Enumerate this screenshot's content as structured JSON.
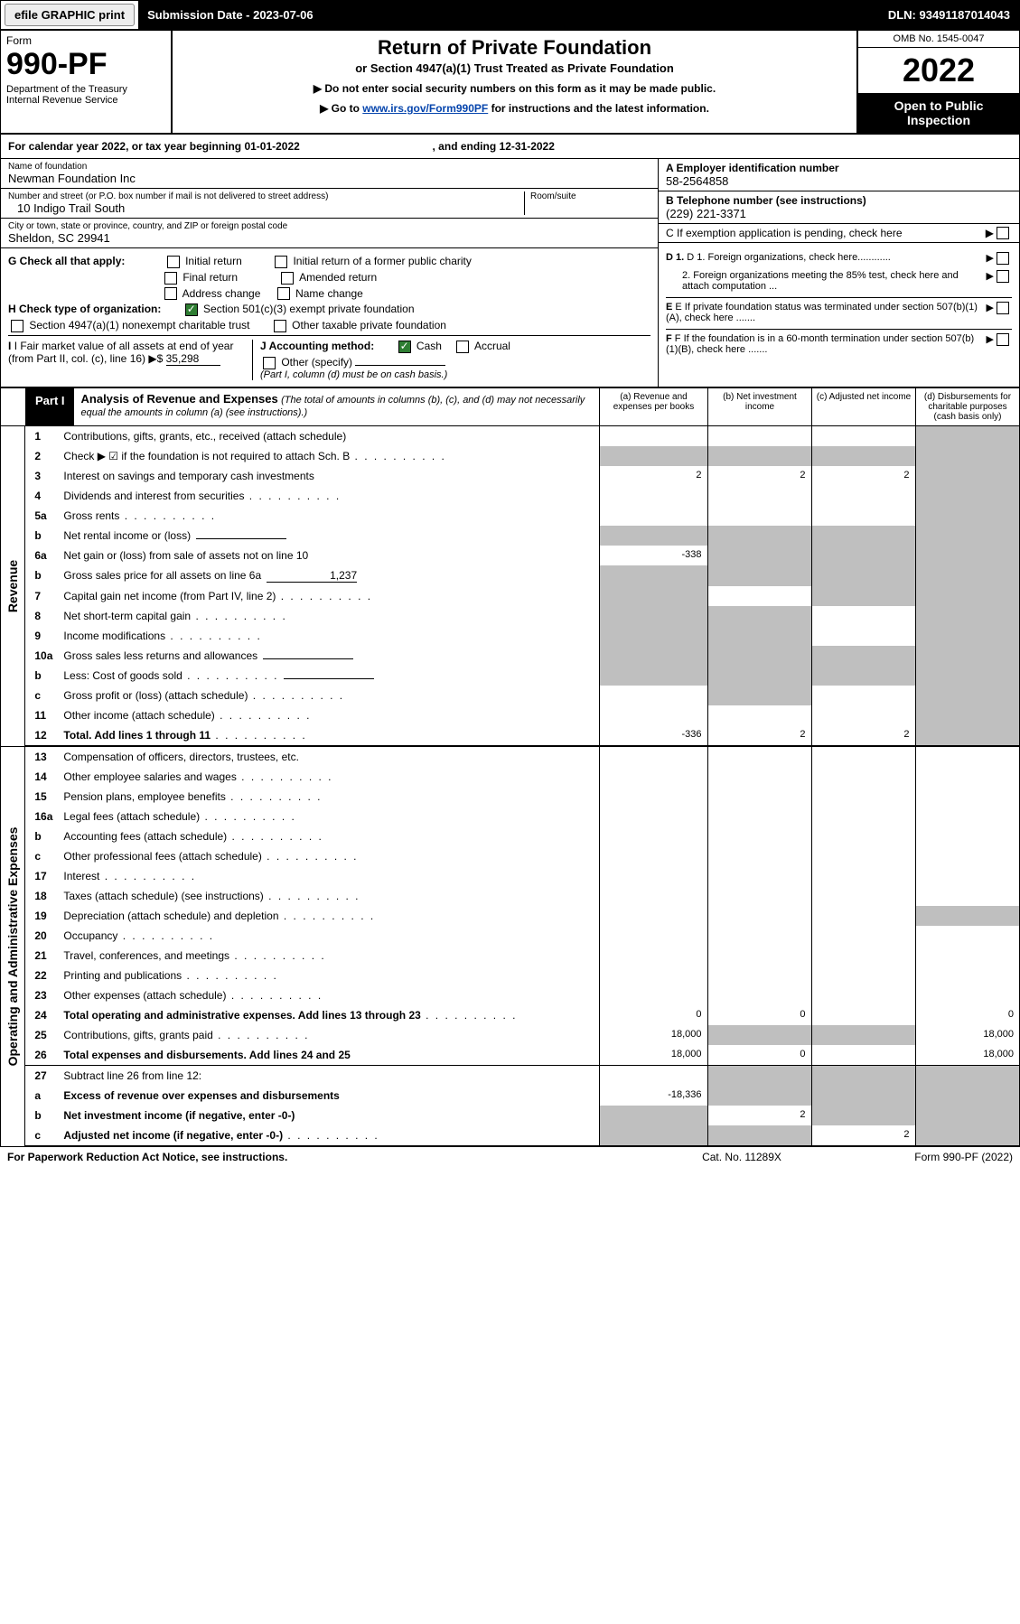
{
  "topbar": {
    "efile": "efile GRAPHIC print",
    "submission": "Submission Date - 2023-07-06",
    "dln": "DLN: 93491187014043"
  },
  "header": {
    "form_label": "Form",
    "form_no": "990-PF",
    "dept": "Department of the Treasury\nInternal Revenue Service",
    "title": "Return of Private Foundation",
    "subtitle": "or Section 4947(a)(1) Trust Treated as Private Foundation",
    "note1": "▶ Do not enter social security numbers on this form as it may be made public.",
    "note2_pre": "▶ Go to ",
    "note2_link": "www.irs.gov/Form990PF",
    "note2_post": " for instructions and the latest information.",
    "omb": "OMB No. 1545-0047",
    "year": "2022",
    "open": "Open to Public Inspection"
  },
  "cy": {
    "text": "For calendar year 2022, or tax year beginning 01-01-2022",
    "ending": ", and ending 12-31-2022"
  },
  "id": {
    "name_lbl": "Name of foundation",
    "name": "Newman Foundation Inc",
    "addr_lbl": "Number and street (or P.O. box number if mail is not delivered to street address)",
    "addr": "10 Indigo Trail South",
    "room_lbl": "Room/suite",
    "city_lbl": "City or town, state or province, country, and ZIP or foreign postal code",
    "city": "Sheldon, SC  29941",
    "a_lbl": "A Employer identification number",
    "a_val": "58-2564858",
    "b_lbl": "B Telephone number (see instructions)",
    "b_val": "(229) 221-3371",
    "c_lbl": "C If exemption application is pending, check here",
    "d1": "D 1. Foreign organizations, check here............",
    "d2": "2. Foreign organizations meeting the 85% test, check here and attach computation ...",
    "e": "E  If private foundation status was terminated under section 507(b)(1)(A), check here .......",
    "f": "F  If the foundation is in a 60-month termination under section 507(b)(1)(B), check here .......",
    "g_lbl": "G Check all that apply:",
    "g_opts": [
      "Initial return",
      "Initial return of a former public charity",
      "Final return",
      "Amended return",
      "Address change",
      "Name change"
    ],
    "h_lbl": "H Check type of organization:",
    "h_opt1": "Section 501(c)(3) exempt private foundation",
    "h_opt2": "Section 4947(a)(1) nonexempt charitable trust",
    "h_opt3": "Other taxable private foundation",
    "i_lbl": "I Fair market value of all assets at end of year (from Part II, col. (c), line 16)",
    "i_val": "35,298",
    "j_lbl": "J Accounting method:",
    "j_cash": "Cash",
    "j_accrual": "Accrual",
    "j_other": "Other (specify)",
    "j_note": "(Part I, column (d) must be on cash basis.)"
  },
  "part1": {
    "tag": "Part I",
    "title": "Analysis of Revenue and Expenses",
    "title_note": "(The total of amounts in columns (b), (c), and (d) may not necessarily equal the amounts in column (a) (see instructions).)",
    "col_a": "(a)   Revenue and expenses per books",
    "col_b": "(b)   Net investment income",
    "col_c": "(c)   Adjusted net income",
    "col_d": "(d)   Disbursements for charitable purposes (cash basis only)"
  },
  "sections": {
    "revenue": "Revenue",
    "expenses": "Operating and Administrative Expenses"
  },
  "rows": [
    {
      "n": "1",
      "d": "Contributions, gifts, grants, etc., received (attach schedule)",
      "a": "",
      "b": "",
      "c": "",
      "dshade": true
    },
    {
      "n": "2",
      "d": "Check ▶ ☑ if the foundation is not required to attach Sch. B",
      "dots": true,
      "allshade": true
    },
    {
      "n": "3",
      "d": "Interest on savings and temporary cash investments",
      "a": "2",
      "b": "2",
      "c": "2",
      "dshade": true
    },
    {
      "n": "4",
      "d": "Dividends and interest from securities",
      "dots": true,
      "dshade": true
    },
    {
      "n": "5a",
      "d": "Gross rents",
      "dots": true,
      "dshade": true
    },
    {
      "n": "b",
      "d": "Net rental income or (loss)",
      "allshade": true,
      "inline": true
    },
    {
      "n": "6a",
      "d": "Net gain or (loss) from sale of assets not on line 10",
      "a": "-338",
      "bshade": true,
      "cshade": true,
      "dshade": true
    },
    {
      "n": "b",
      "d": "Gross sales price for all assets on line 6a",
      "inline": true,
      "ival": "1,237",
      "allshade": true
    },
    {
      "n": "7",
      "d": "Capital gain net income (from Part IV, line 2)",
      "dots": true,
      "ashade": true,
      "cshade": true,
      "dshade": true
    },
    {
      "n": "8",
      "d": "Net short-term capital gain",
      "dots": true,
      "ashade": true,
      "bshade": true,
      "dshade": true
    },
    {
      "n": "9",
      "d": "Income modifications",
      "dots": true,
      "ashade": true,
      "bshade": true,
      "dshade": true
    },
    {
      "n": "10a",
      "d": "Gross sales less returns and allowances",
      "inline": true,
      "allshade": true
    },
    {
      "n": "b",
      "d": "Less: Cost of goods sold",
      "dots": true,
      "inline": true,
      "allshade": true
    },
    {
      "n": "c",
      "d": "Gross profit or (loss) (attach schedule)",
      "dots": true,
      "bshade": true,
      "dshade": true
    },
    {
      "n": "11",
      "d": "Other income (attach schedule)",
      "dots": true,
      "dshade": true
    },
    {
      "n": "12",
      "d": "Total. Add lines 1 through 11",
      "dots": true,
      "bold": true,
      "a": "-336",
      "b": "2",
      "c": "2",
      "dshade": true,
      "bl": true
    }
  ],
  "exp_rows": [
    {
      "n": "13",
      "d": "Compensation of officers, directors, trustees, etc."
    },
    {
      "n": "14",
      "d": "Other employee salaries and wages",
      "dots": true
    },
    {
      "n": "15",
      "d": "Pension plans, employee benefits",
      "dots": true
    },
    {
      "n": "16a",
      "d": "Legal fees (attach schedule)",
      "dots": true
    },
    {
      "n": "b",
      "d": "Accounting fees (attach schedule)",
      "dots": true
    },
    {
      "n": "c",
      "d": "Other professional fees (attach schedule)",
      "dots": true
    },
    {
      "n": "17",
      "d": "Interest",
      "dots": true
    },
    {
      "n": "18",
      "d": "Taxes (attach schedule) (see instructions)",
      "dots": true
    },
    {
      "n": "19",
      "d": "Depreciation (attach schedule) and depletion",
      "dots": true,
      "dshade": true
    },
    {
      "n": "20",
      "d": "Occupancy",
      "dots": true
    },
    {
      "n": "21",
      "d": "Travel, conferences, and meetings",
      "dots": true
    },
    {
      "n": "22",
      "d": "Printing and publications",
      "dots": true
    },
    {
      "n": "23",
      "d": "Other expenses (attach schedule)",
      "dots": true
    },
    {
      "n": "24",
      "d": "Total operating and administrative expenses. Add lines 13 through 23",
      "dots": true,
      "bold": true,
      "a": "0",
      "b": "0",
      "c": "",
      "dv": "0"
    },
    {
      "n": "25",
      "d": "Contributions, gifts, grants paid",
      "dots": true,
      "a": "18,000",
      "bshade": true,
      "cshade": true,
      "dv": "18,000"
    },
    {
      "n": "26",
      "d": "Total expenses and disbursements. Add lines 24 and 25",
      "bold": true,
      "a": "18,000",
      "b": "0",
      "c": "",
      "dv": "18,000",
      "bl": true
    },
    {
      "n": "27",
      "d": "Subtract line 26 from line 12:",
      "allshade_bcd": true
    },
    {
      "n": "a",
      "d": "Excess of revenue over expenses and disbursements",
      "bold": true,
      "a": "-18,336",
      "bshade": true,
      "cshade": true,
      "dshade": true
    },
    {
      "n": "b",
      "d": "Net investment income (if negative, enter -0-)",
      "bold": true,
      "ashade": true,
      "b": "2",
      "cshade": true,
      "dshade": true
    },
    {
      "n": "c",
      "d": "Adjusted net income (if negative, enter -0-)",
      "bold": true,
      "dots": true,
      "ashade": true,
      "bshade": true,
      "c": "2",
      "dshade": true,
      "bl": true
    }
  ],
  "footer": {
    "l": "For Paperwork Reduction Act Notice, see instructions.",
    "m": "Cat. No. 11289X",
    "r": "Form 990-PF (2022)"
  },
  "colors": {
    "link": "#0645ad",
    "shade": "#bfbfbf",
    "check": "#2e7d32"
  }
}
